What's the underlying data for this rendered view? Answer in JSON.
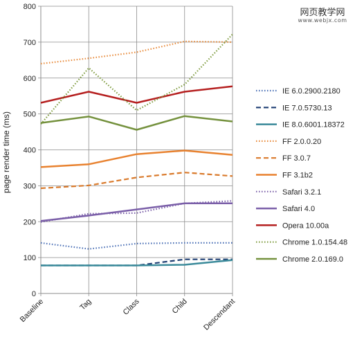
{
  "watermark": {
    "main": "网页教学网",
    "sub": "www.webjx.com"
  },
  "chart_data": {
    "type": "line",
    "title": "",
    "xlabel": "",
    "ylabel": "page render time (ms)",
    "ylim": [
      0,
      800
    ],
    "yticks": [
      0,
      100,
      200,
      300,
      400,
      500,
      600,
      700,
      800
    ],
    "grid": true,
    "legend_position": "right",
    "categories": [
      "Baseline",
      "Tag",
      "Class",
      "Child",
      "Descendant"
    ],
    "series": [
      {
        "name": "IE 6.0.2900.2180",
        "color": "#4a6fb5",
        "style": "dotted",
        "values": [
          141,
          124,
          139,
          141,
          141
        ]
      },
      {
        "name": "IE 7.0.5730.13",
        "color": "#1f3f73",
        "style": "dashed",
        "values": [
          78,
          78,
          78,
          95,
          95
        ]
      },
      {
        "name": "IE 8.0.6001.18372",
        "color": "#3a8a9a",
        "style": "solid",
        "values": [
          78,
          78,
          78,
          80,
          93
        ]
      },
      {
        "name": "FF 2.0.0.20",
        "color": "#e88a3a",
        "style": "dotted",
        "values": [
          640,
          655,
          672,
          702,
          700
        ]
      },
      {
        "name": "FF 3.0.7",
        "color": "#d9792a",
        "style": "dashed",
        "values": [
          293,
          301,
          323,
          337,
          327
        ]
      },
      {
        "name": "FF 3.1b2",
        "color": "#e8812e",
        "style": "solid",
        "values": [
          352,
          360,
          388,
          398,
          386
        ]
      },
      {
        "name": "Safari 3.2.1",
        "color": "#7a5ea8",
        "style": "dotted",
        "values": [
          199,
          222,
          224,
          251,
          258
        ]
      },
      {
        "name": "Safari 4.0",
        "color": "#7a5ea8",
        "style": "solid",
        "values": [
          202,
          217,
          234,
          251,
          251
        ]
      },
      {
        "name": "Opera 10.00a",
        "color": "#b51f1f",
        "style": "solid",
        "values": [
          531,
          562,
          531,
          562,
          577
        ]
      },
      {
        "name": "Chrome 1.0.154.48",
        "color": "#7d9a3c",
        "style": "dotted",
        "values": [
          472,
          628,
          510,
          582,
          722
        ]
      },
      {
        "name": "Chrome 2.0.169.0",
        "color": "#74913d",
        "style": "solid",
        "values": [
          475,
          493,
          456,
          494,
          479
        ]
      }
    ]
  }
}
